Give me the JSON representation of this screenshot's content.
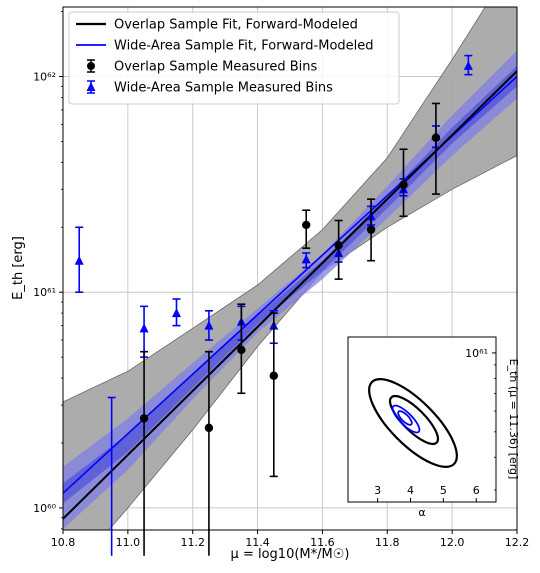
{
  "chart_data": [
    {
      "type": "line",
      "xlabel": "μ = log10(M*/M☉)",
      "ylabel": "E_th [erg]",
      "xlim": [
        10.8,
        12.2
      ],
      "y_scale": "log",
      "ylim": [
        7.9e+59,
        2.1e+62
      ],
      "grid": true,
      "legend_placement": "top-left",
      "x_ticks": [
        "10.8",
        "11.0",
        "11.2",
        "11.4",
        "11.6",
        "11.8",
        "12.0",
        "12.2"
      ],
      "y_ticks": [
        {
          "value": 1e+60,
          "label": "10⁶⁰"
        },
        {
          "value": 1e+61,
          "label": "10⁶¹"
        },
        {
          "value": 1e+62,
          "label": "10⁶²"
        }
      ],
      "legend": [
        {
          "label": "Overlap Sample Fit, Forward-Modeled",
          "marker": "line",
          "color": "#000000"
        },
        {
          "label": "Wide-Area Sample Fit, Forward-Modeled",
          "marker": "line",
          "color": "#0000ff"
        },
        {
          "label": "Overlap Sample Measured Bins",
          "marker": "circle",
          "color": "#000000"
        },
        {
          "label": "Wide-Area Sample Measured Bins",
          "marker": "triangle",
          "color": "#0000ff"
        }
      ],
      "colors": {
        "overlap": "#000000",
        "wide": "#0000ff",
        "overlap_band": "#a8a8a8",
        "wide_band_outer": "#8080e0",
        "wide_band_inner": "#5a5ad8"
      },
      "fits": {
        "overlap": {
          "x": [
            10.8,
            12.2
          ],
          "y": [
            8.9e+59,
            1.06e+62
          ]
        },
        "wide": {
          "x": [
            10.8,
            12.2
          ],
          "y": [
            1.17e+60,
            1e+62
          ]
        }
      },
      "bands": {
        "overlap": {
          "x": [
            10.8,
            11.0,
            11.2,
            11.4,
            11.6,
            11.8,
            12.0,
            12.2
          ],
          "lower": [
            4.5e+59,
            1e+60,
            2.3e+60,
            5.6e+60,
            1.25e+61,
            2e+61,
            3e+61,
            4.3e+61
          ],
          "upper": [
            3.1e+60,
            4.3e+60,
            6.8e+60,
            1.08e+61,
            1.95e+61,
            4.2e+61,
            1.2e+62,
            3.6e+62
          ]
        },
        "wide_outer": {
          "x": [
            10.8,
            11.0,
            11.2,
            11.4,
            11.6,
            11.8,
            12.0,
            12.2
          ],
          "lower": [
            8e+59,
            1.5e+60,
            3.2e+60,
            6.5e+60,
            1.15e+61,
            2.2e+61,
            4.3e+61,
            7.9e+61
          ],
          "upper": [
            1.55e+60,
            2.6e+60,
            4.7e+60,
            8.4e+60,
            1.5e+61,
            3.1e+61,
            6.6e+61,
            1.32e+62
          ]
        },
        "wide_inner": {
          "x": [
            10.8,
            11.0,
            11.2,
            11.4,
            11.6,
            11.8,
            12.0,
            12.2
          ],
          "lower": [
            1.05e+60,
            1.82e+60,
            3.6e+60,
            7.1e+60,
            1.25e+61,
            2.45e+61,
            4.9e+61,
            9e+61
          ],
          "upper": [
            1.3e+60,
            2.2e+60,
            4.2e+60,
            7.8e+60,
            1.4e+61,
            2.8e+61,
            5.8e+61,
            1.12e+62
          ]
        }
      },
      "series": [
        {
          "name": "Overlap Sample Measured Bins",
          "marker": "circle",
          "color": "#000000",
          "x": [
            11.05,
            11.25,
            11.35,
            11.45,
            11.55,
            11.65,
            11.75,
            11.85,
            11.95
          ],
          "y": [
            2.6e+60,
            2.35e+60,
            5.4e+60,
            4.1e+60,
            2.05e+61,
            1.65e+61,
            1.95e+61,
            3.15e+61,
            5.2e+61
          ],
          "y_low": [
            6e+59,
            6e+59,
            3.4e+60,
            1.4e+60,
            1.6e+61,
            1.15e+61,
            1.4e+61,
            2.25e+61,
            2.85e+61
          ],
          "y_high": [
            5.3e+60,
            5.3e+60,
            8.8e+60,
            8e+60,
            2.4e+61,
            2.15e+61,
            2.7e+61,
            4.6e+61,
            7.5e+61
          ]
        },
        {
          "name": "Wide-Area Sample Measured Bins",
          "marker": "triangle",
          "color": "#0000ff",
          "x": [
            10.85,
            10.95,
            11.05,
            11.15,
            11.25,
            11.35,
            11.45,
            11.55,
            11.65,
            11.75,
            11.85,
            11.95,
            12.05
          ],
          "y": [
            1.4e+61,
            7e+59,
            6.8e+60,
            8e+60,
            7e+60,
            7.3e+60,
            7e+60,
            1.42e+61,
            1.52e+61,
            2.25e+61,
            3e+61,
            5.3e+61,
            1.12e+62
          ],
          "y_low": [
            1e+61,
            6e+59,
            5e+60,
            7e+60,
            6e+60,
            6e+60,
            5.8e+60,
            1.3e+61,
            1.38e+61,
            2.05e+61,
            2.8e+61,
            4.7e+61,
            1.02e+62
          ],
          "y_high": [
            2e+61,
            3.25e+60,
            8.6e+60,
            9.3e+60,
            8.2e+60,
            8.6e+60,
            8.2e+60,
            1.52e+61,
            1.68e+61,
            2.5e+61,
            3.35e+61,
            5.9e+61,
            1.25e+62
          ]
        }
      ]
    },
    {
      "type": "contour",
      "placement": "lower-right inset",
      "xlabel": "α",
      "ylabel": "E_th (μ = 11.36)  [erg]",
      "x_ticks": [
        "3",
        "4",
        "5",
        "6"
      ],
      "xlim": [
        2.1,
        6.6
      ],
      "y_scale": "log",
      "ylim": [
        2.7e+60,
        1.15e+61
      ],
      "y_ticks": [
        {
          "value": 1e+61,
          "label": "10⁶¹"
        }
      ],
      "contours": [
        {
          "series": "Overlap Sample",
          "color": "#000000",
          "center": {
            "x": 4.3,
            "y": 5.4e+60
          },
          "levels": 2
        },
        {
          "series": "Wide-Area Sample",
          "color": "#0000ff",
          "center": {
            "x": 3.95,
            "y": 5.7e+60
          },
          "levels": 2
        }
      ]
    }
  ]
}
